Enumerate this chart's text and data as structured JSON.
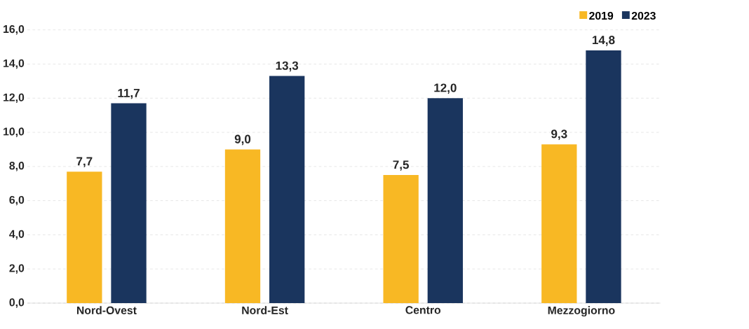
{
  "chart_data": {
    "type": "bar",
    "categories": [
      "Nord-Ovest",
      "Nord-Est",
      "Centro",
      "Mezzogiorno"
    ],
    "series": [
      {
        "name": "2019",
        "color": "#f8b824",
        "values": [
          7.7,
          9.0,
          7.5,
          9.3
        ],
        "value_labels": [
          "7,7",
          "9,0",
          "7,5",
          "9,3"
        ]
      },
      {
        "name": "2023",
        "color": "#1a355e",
        "values": [
          11.7,
          13.3,
          12.0,
          14.8
        ],
        "value_labels": [
          "11,7",
          "13,3",
          "12,0",
          "14,8"
        ]
      }
    ],
    "ylim": [
      0,
      16
    ],
    "yticks": [
      {
        "value": 0,
        "label": "0,0"
      },
      {
        "value": 2,
        "label": "2,0"
      },
      {
        "value": 4,
        "label": "4,0"
      },
      {
        "value": 6,
        "label": "6,0"
      },
      {
        "value": 8,
        "label": "8,0"
      },
      {
        "value": 10,
        "label": "10,0"
      },
      {
        "value": 12,
        "label": "12,0"
      },
      {
        "value": 14,
        "label": "14,0"
      },
      {
        "value": 16,
        "label": "16,0"
      }
    ],
    "grid": "y",
    "legend": "top right"
  }
}
